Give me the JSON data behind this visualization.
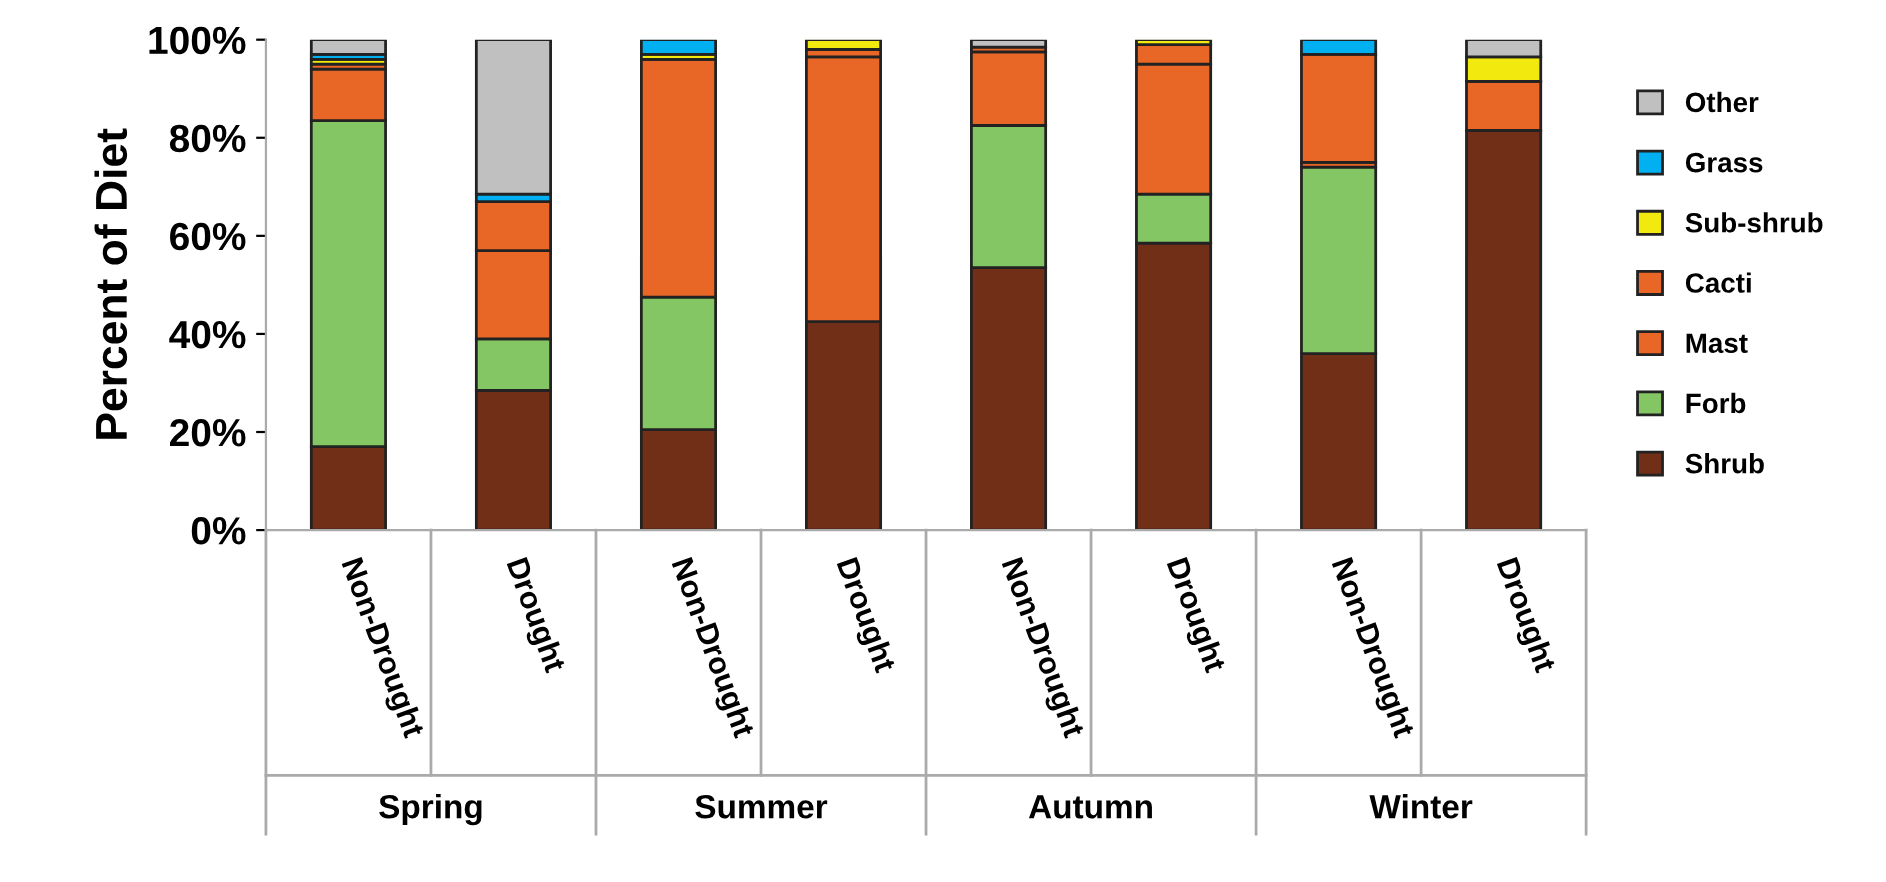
{
  "chart_data": {
    "type": "bar",
    "stacked": true,
    "ylabel": "Percent of Diet",
    "categories": [
      "Non-Drought",
      "Drought",
      "Non-Drought",
      "Drought",
      "Non-Drought",
      "Drought",
      "Non-Drought",
      "Drought"
    ],
    "annotations": [
      "Spring",
      "Summer",
      "Autumn",
      "Winter"
    ],
    "ylim": [
      0,
      100
    ],
    "yticks": [
      {
        "value": 0,
        "label": "0%"
      },
      {
        "value": 20,
        "label": "20%"
      },
      {
        "value": 40,
        "label": "40%"
      },
      {
        "value": 60,
        "label": "60%"
      },
      {
        "value": 80,
        "label": "80%"
      },
      {
        "value": 100,
        "label": "100%"
      }
    ],
    "legend": "right",
    "series": [
      {
        "name": "Shrub",
        "color": "#722f17",
        "values": [
          17,
          28.5,
          20.5,
          42.5,
          53.5,
          58.5,
          36,
          81.5
        ]
      },
      {
        "name": "Forb",
        "color": "#84c663",
        "values": [
          66.5,
          10.5,
          27,
          0,
          29,
          10,
          38,
          0
        ]
      },
      {
        "name": "Mast",
        "color": "#e96726",
        "values": [
          10.5,
          18,
          48.5,
          54,
          15,
          26.5,
          1,
          10
        ]
      },
      {
        "name": "Cacti",
        "color": "#e96726",
        "values": [
          1,
          10,
          0,
          1.5,
          1,
          4,
          22,
          0
        ]
      },
      {
        "name": "Sub-shrub",
        "color": "#f2e90f",
        "values": [
          1,
          0,
          1,
          2,
          0,
          1,
          0,
          5
        ]
      },
      {
        "name": "Grass",
        "color": "#00b0f0",
        "values": [
          1,
          1.5,
          3,
          0,
          0,
          0,
          3,
          0
        ]
      },
      {
        "name": "Other",
        "color": "#c0c0c0",
        "values": [
          3,
          31.5,
          0,
          0,
          1.5,
          0,
          0,
          3.5
        ]
      }
    ]
  }
}
